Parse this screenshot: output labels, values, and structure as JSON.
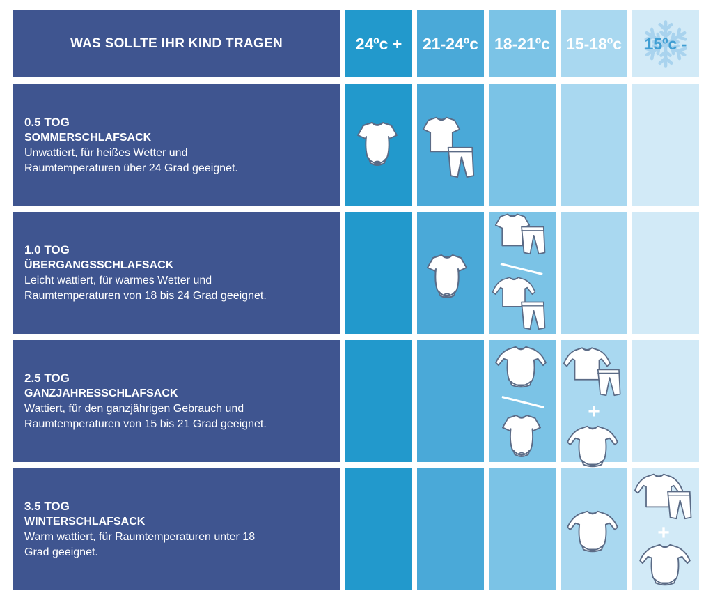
{
  "header": {
    "title": "WAS SOLLTE IHR KIND TRAGEN",
    "temperatures": [
      "24ºc +",
      "21-24ºc",
      "18-21ºc",
      "15-18ºc",
      "15ºc -"
    ]
  },
  "rows": [
    {
      "tog": "0.5 TOG",
      "name": "SOMMERSCHLAFSACK",
      "desc": [
        "Unwattiert, für heißes Wetter und",
        "Raumtemperaturen über 24 Grad geeignet."
      ]
    },
    {
      "tog": "1.0 TOG",
      "name": "ÜBERGANGSSCHLAFSACK",
      "desc": [
        "Leicht wattiert, für warmes Wetter und",
        "Raumtemperaturen von 18 bis 24 Grad geeignet."
      ]
    },
    {
      "tog": "2.5 TOG",
      "name": "GANZJAHRESSCHLAFSACK",
      "desc": [
        "Wattiert, für den ganzjährigen Gebrauch und",
        "Raumtemperaturen von 15 bis 21 Grad geeignet."
      ]
    },
    {
      "tog": "3.5 TOG",
      "name": "WINTERSCHLAFSACK",
      "desc": [
        "Warm wattiert, für Raumtemperaturen unter 18",
        "Grad geeignet."
      ]
    }
  ],
  "colors": {
    "navy": "#3f5590",
    "temp_columns": [
      "#2299cc",
      "#4aa9d8",
      "#7bc3e6",
      "#a9d8f0",
      "#d2eaf7"
    ]
  },
  "icons": {
    "short-sleeve-bodysuit": "short-sleeve-bodysuit-icon",
    "long-sleeve-bodysuit": "long-sleeve-bodysuit-icon",
    "short-sleeve-tshirt": "tshirt-icon",
    "long-sleeve-top": "long-sleeve-top-icon",
    "trousers": "trousers-icon",
    "snowflake": "snowflake-icon"
  }
}
